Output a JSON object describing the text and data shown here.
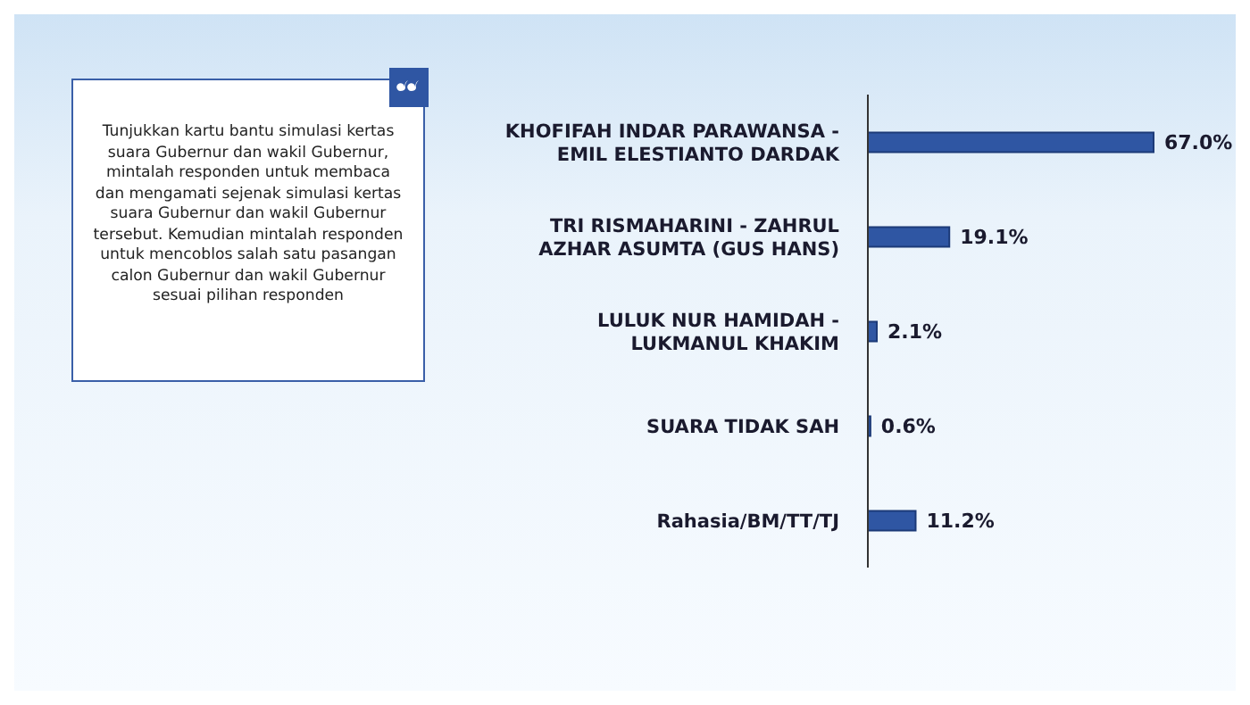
{
  "chart_data": {
    "type": "bar",
    "orientation": "horizontal",
    "categories": [
      "KHOFIFAH INDAR PARAWANSA - EMIL ELESTIANTO DARDAK",
      "TRI RISMAHARINI - ZAHRUL AZHAR ASUMTA (GUS HANS)",
      "LULUK NUR HAMIDAH - LUKMANUL KHAKIM",
      "SUARA TIDAK SAH",
      "Rahasia/BM/TT/TJ"
    ],
    "values": [
      67.0,
      19.1,
      2.1,
      0.6,
      11.2
    ],
    "value_labels": [
      "67.0%",
      "19.1%",
      "2.1%",
      "0.6%",
      "11.2%"
    ],
    "color": "#2f56a3",
    "annotations": [
      "Tunjukkan kartu bantu simulasi kertas suara Gubernur dan wakil Gubernur, mintalah responden untuk membaca dan mengamati sejenak simulasi kertas suara Gubernur dan wakil Gubernur tersebut. Kemudian mintalah responden untuk mencoblos salah satu pasangan calon Gubernur dan wakil Gubernur sesuai pilihan responden"
    ]
  }
}
